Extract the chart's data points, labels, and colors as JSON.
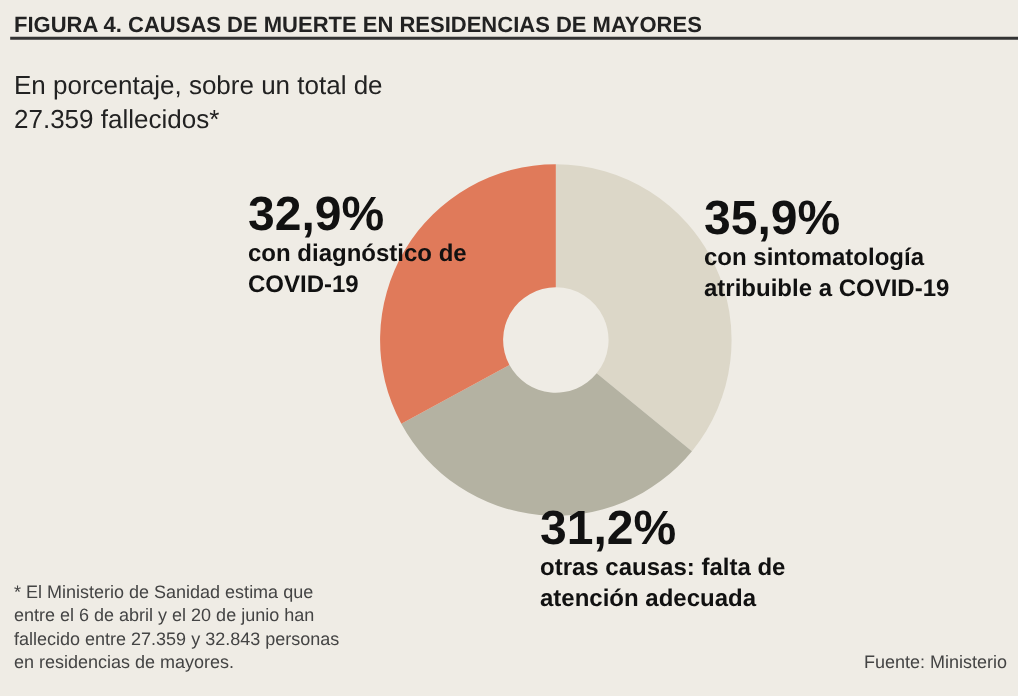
{
  "chart_data": {
    "type": "donut",
    "title": "FIGURA 4. CAUSAS DE MUERTE EN RESIDENCIAS DE MAYORES",
    "subtitle": "En porcentaje, sobre un total de 27.359 fallecidos*",
    "categories": [
      "con sintomatología atribuible a COVID-19",
      "otras causas: falta de atención adecuada",
      "con diagnóstico de COVID-19"
    ],
    "values": [
      35.9,
      31.2,
      32.9
    ],
    "value_labels": [
      "35,9%",
      "31,2%",
      "32,9%"
    ],
    "colors": [
      "#dcd7c8",
      "#b4b2a2",
      "#e07a5a"
    ],
    "annotations": [
      "* El Ministerio de Sanidad estima que entre el 6 de abril y el 20 de junio han fallecido entre 27.359 y 32.843 personas en residencias de mayores.",
      "Fuente: Ministerio"
    ],
    "legend": false
  }
}
